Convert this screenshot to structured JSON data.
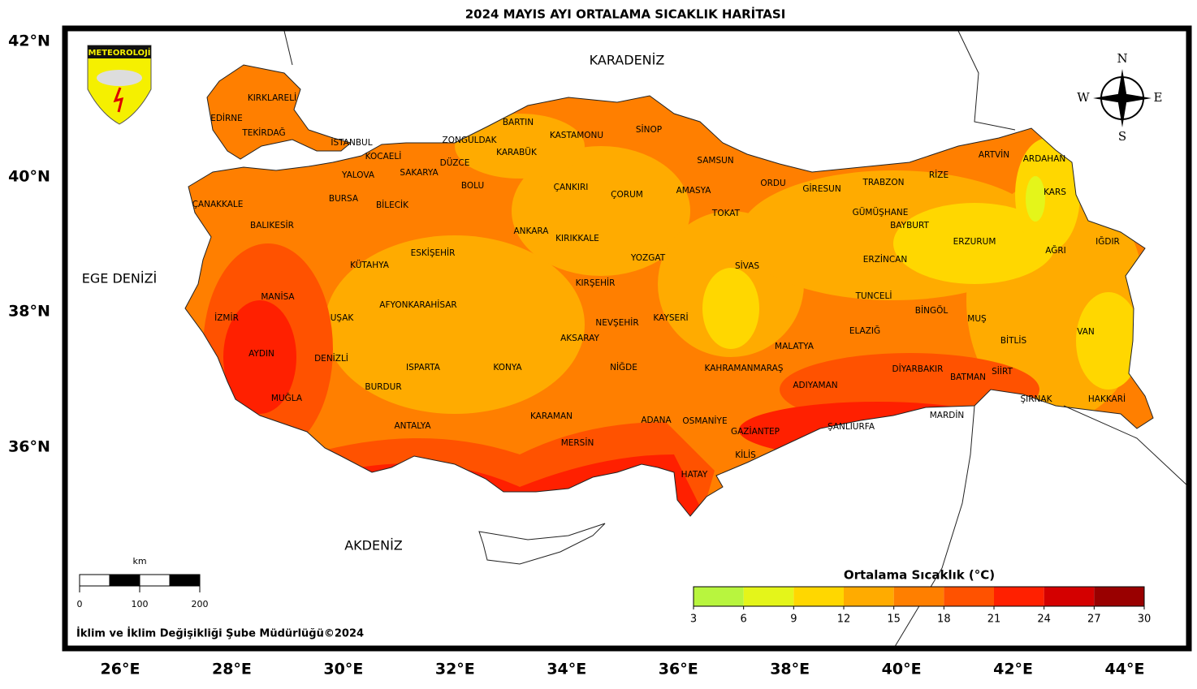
{
  "title": "2024 MAYIS AYI ORTALAMA SICAKLIK HARİTASI",
  "seas": [
    "KARADENİZ",
    "EGE DENİZİ",
    "AKDENİZ"
  ],
  "logo": "METEOROLOJİ",
  "compass": [
    "N",
    "E",
    "S",
    "W"
  ],
  "latitude_labels": [
    "42°N",
    "40°N",
    "38°N",
    "36°N"
  ],
  "longitude_labels": [
    "26°E",
    "28°E",
    "30°E",
    "32°E",
    "34°E",
    "36°E",
    "38°E",
    "40°E",
    "42°E",
    "44°E"
  ],
  "provinces": [
    "KIRKLARELİ",
    "EDİRNE",
    "TEKİRDAĞ",
    "İSTANBUL",
    "KOCAELİ",
    "ZONGULDAK",
    "BARTIN",
    "KASTAMONU",
    "SİNOP",
    "KARABÜK",
    "DÜZCE",
    "SAKARYA",
    "YALOVA",
    "SAMSUN",
    "ARTVİN",
    "ARDAHAN",
    "RİZE",
    "TRABZON",
    "ORDU",
    "GİRESUN",
    "BOLU",
    "ÇANKIRI",
    "ÇORUM",
    "AMASYA",
    "KARS",
    "BURSA",
    "ÇANAKKALE",
    "BİLECİK",
    "GÜMÜŞHANE",
    "TOKAT",
    "BAYBURT",
    "BALIKESİR",
    "ANKARA",
    "KIRIKKALE",
    "ERZURUM",
    "IĞDIR",
    "AĞRI",
    "ESKİŞEHİR",
    "ERZİNCAN",
    "YOZGAT",
    "SİVAS",
    "KÜTAHYA",
    "KIRŞEHİR",
    "MANİSA",
    "TUNCELİ",
    "AFYONKARAHİSAR",
    "BİNGÖL",
    "İZMİR",
    "UŞAK",
    "KAYSERİ",
    "MUŞ",
    "NEVŞEHİR",
    "ELAZIĞ",
    "VAN",
    "AKSARAY",
    "BİTLİS",
    "MALATYA",
    "AYDIN",
    "DENİZLİ",
    "ISPARTA",
    "KONYA",
    "NİĞDE",
    "KAHRAMANMARAŞ",
    "DİYARBAKIR",
    "SİİRT",
    "BATMAN",
    "ADIYAMAN",
    "BURDUR",
    "MUĞLA",
    "ŞIRNAK",
    "HAKKARİ",
    "MARDİN",
    "KARAMAN",
    "ADANA",
    "OSMANİYE",
    "ANTALYA",
    "ŞANLIURFA",
    "GAZİANTEP",
    "MERSİN",
    "KİLİS",
    "HATAY"
  ],
  "scale_bar": {
    "unit": "km",
    "ticks": [
      0,
      100,
      200
    ]
  },
  "credit": "İklim ve İklim Değişikliği Şube Müdürlüğü©2024",
  "legend": {
    "title": "Ortalama Sıcaklık (°C)",
    "ticks": [
      3,
      6,
      9,
      12,
      15,
      18,
      21,
      24,
      27,
      30
    ],
    "colors": [
      "#b8f53e",
      "#e4f51a",
      "#ffd700",
      "#ffab00",
      "#ff7f00",
      "#ff5200",
      "#ff2000",
      "#d40000",
      "#990000"
    ]
  }
}
